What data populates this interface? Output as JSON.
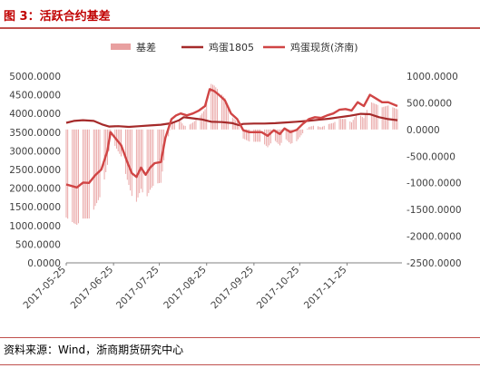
{
  "figure": {
    "title": "图 3：活跃合约基差",
    "source": "资料来源：Wind，浙商期货研究中心"
  },
  "colors": {
    "title": "#c00000",
    "rule": "#c0504d",
    "basis": "#e8a0a0",
    "egg1805": "#a52a2a",
    "spot": "#d04545",
    "axis_text": "#404040"
  },
  "chart_data": {
    "type": "bar+line",
    "legend": [
      "基差",
      "鸡蛋1805",
      "鸡蛋现货(济南)"
    ],
    "legend_position": "top",
    "left_axis": {
      "min": 0,
      "max": 5000,
      "step": 500,
      "ticks": [
        "0.0000",
        "500.0000",
        "1000.0000",
        "1500.0000",
        "2000.0000",
        "2500.0000",
        "3000.0000",
        "3500.0000",
        "4000.0000",
        "4500.0000",
        "5000.0000"
      ]
    },
    "right_axis": {
      "min": -2500,
      "max": 1000,
      "step": 500,
      "ticks": [
        "-2500.0000",
        "-2000.0000",
        "-1500.0000",
        "-1000.0000",
        "-500.0000",
        "0.0000",
        "500.0000",
        "1000.0000"
      ]
    },
    "x_ticks": [
      "2017-05-25",
      "2017-06-25",
      "2017-07-25",
      "2017-08-25",
      "2017-09-25",
      "2017-10-25",
      "2017-11-25"
    ],
    "x_range": [
      "2017-05-25",
      "2017-12-31"
    ],
    "series": [
      {
        "name": "鸡蛋1805",
        "axis": "left",
        "points": [
          [
            "2017-05-25",
            3750
          ],
          [
            "2017-05-30",
            3800
          ],
          [
            "2017-06-05",
            3820
          ],
          [
            "2017-06-12",
            3800
          ],
          [
            "2017-06-18",
            3700
          ],
          [
            "2017-06-22",
            3650
          ],
          [
            "2017-06-28",
            3660
          ],
          [
            "2017-07-05",
            3640
          ],
          [
            "2017-07-12",
            3660
          ],
          [
            "2017-07-19",
            3680
          ],
          [
            "2017-07-26",
            3700
          ],
          [
            "2017-08-02",
            3740
          ],
          [
            "2017-08-07",
            3820
          ],
          [
            "2017-08-10",
            3900
          ],
          [
            "2017-08-14",
            3880
          ],
          [
            "2017-08-18",
            3860
          ],
          [
            "2017-08-22",
            3840
          ],
          [
            "2017-08-28",
            3780
          ],
          [
            "2017-09-04",
            3770
          ],
          [
            "2017-09-11",
            3740
          ],
          [
            "2017-09-15",
            3690
          ],
          [
            "2017-09-18",
            3720
          ],
          [
            "2017-09-25",
            3730
          ],
          [
            "2017-10-02",
            3730
          ],
          [
            "2017-10-09",
            3740
          ],
          [
            "2017-10-16",
            3760
          ],
          [
            "2017-10-23",
            3780
          ],
          [
            "2017-10-30",
            3800
          ],
          [
            "2017-11-06",
            3830
          ],
          [
            "2017-11-13",
            3860
          ],
          [
            "2017-11-20",
            3900
          ],
          [
            "2017-11-27",
            3940
          ],
          [
            "2017-12-04",
            3990
          ],
          [
            "2017-12-10",
            3980
          ],
          [
            "2017-12-16",
            3900
          ],
          [
            "2017-12-22",
            3850
          ],
          [
            "2017-12-28",
            3820
          ]
        ]
      },
      {
        "name": "鸡蛋现货(济南)",
        "axis": "left",
        "points": [
          [
            "2017-05-25",
            2100
          ],
          [
            "2017-06-01",
            2020
          ],
          [
            "2017-06-05",
            2150
          ],
          [
            "2017-06-09",
            2140
          ],
          [
            "2017-06-13",
            2350
          ],
          [
            "2017-06-17",
            2500
          ],
          [
            "2017-06-21",
            3000
          ],
          [
            "2017-06-23",
            3500
          ],
          [
            "2017-06-26",
            3350
          ],
          [
            "2017-06-30",
            3150
          ],
          [
            "2017-07-04",
            2700
          ],
          [
            "2017-07-07",
            2400
          ],
          [
            "2017-07-10",
            2300
          ],
          [
            "2017-07-13",
            2550
          ],
          [
            "2017-07-16",
            2360
          ],
          [
            "2017-07-19",
            2550
          ],
          [
            "2017-07-22",
            2670
          ],
          [
            "2017-07-26",
            2700
          ],
          [
            "2017-07-29",
            3350
          ],
          [
            "2017-08-02",
            3850
          ],
          [
            "2017-08-05",
            3950
          ],
          [
            "2017-08-08",
            4000
          ],
          [
            "2017-08-12",
            3950
          ],
          [
            "2017-08-16",
            4000
          ],
          [
            "2017-08-20",
            4080
          ],
          [
            "2017-08-24",
            4200
          ],
          [
            "2017-08-27",
            4650
          ],
          [
            "2017-08-30",
            4600
          ],
          [
            "2017-09-02",
            4500
          ],
          [
            "2017-09-06",
            4350
          ],
          [
            "2017-09-10",
            4000
          ],
          [
            "2017-09-14",
            3850
          ],
          [
            "2017-09-18",
            3550
          ],
          [
            "2017-09-22",
            3500
          ],
          [
            "2017-09-26",
            3500
          ],
          [
            "2017-09-30",
            3500
          ],
          [
            "2017-10-04",
            3400
          ],
          [
            "2017-10-08",
            3550
          ],
          [
            "2017-10-12",
            3450
          ],
          [
            "2017-10-15",
            3600
          ],
          [
            "2017-10-19",
            3500
          ],
          [
            "2017-10-23",
            3560
          ],
          [
            "2017-10-27",
            3720
          ],
          [
            "2017-10-31",
            3850
          ],
          [
            "2017-11-04",
            3900
          ],
          [
            "2017-11-08",
            3880
          ],
          [
            "2017-11-12",
            3950
          ],
          [
            "2017-11-16",
            4000
          ],
          [
            "2017-11-20",
            4100
          ],
          [
            "2017-11-24",
            4120
          ],
          [
            "2017-11-28",
            4080
          ],
          [
            "2017-12-02",
            4300
          ],
          [
            "2017-12-06",
            4200
          ],
          [
            "2017-12-10",
            4500
          ],
          [
            "2017-12-14",
            4400
          ],
          [
            "2017-12-18",
            4300
          ],
          [
            "2017-12-22",
            4300
          ],
          [
            "2017-12-28",
            4200
          ]
        ]
      },
      {
        "name": "基差",
        "axis": "right",
        "kind": "bar",
        "note": "basis = spot - 1805"
      }
    ]
  }
}
